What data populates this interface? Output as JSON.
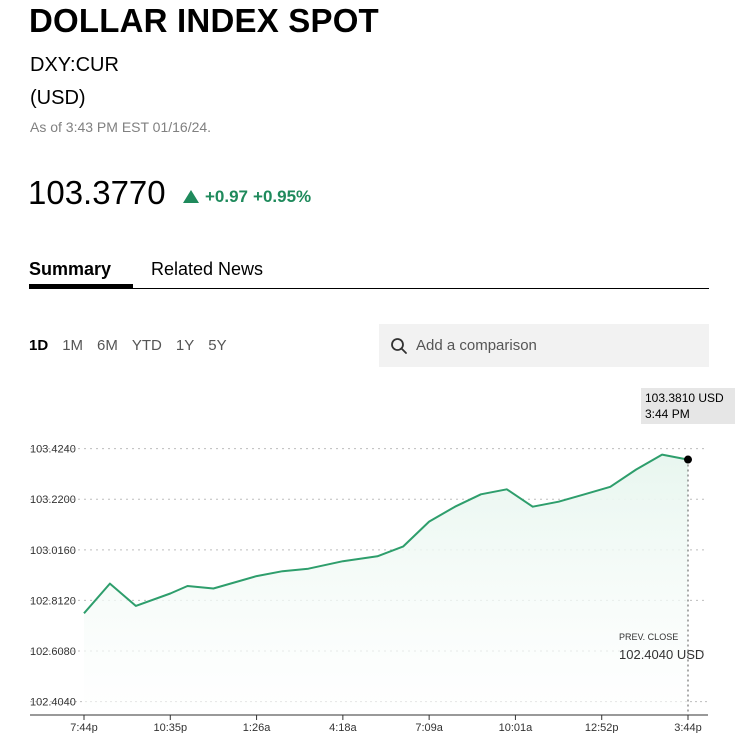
{
  "header": {
    "title": "DOLLAR INDEX SPOT",
    "ticker": "DXY:CUR",
    "currency": "(USD)",
    "as_of": "As of 3:43 PM EST 01/16/24."
  },
  "quote": {
    "price": "103.3770",
    "change": "+0.97",
    "change_pct": "+0.95%",
    "direction_icon": "triangle-up-icon",
    "up_color": "#1f8a5c"
  },
  "tabs": [
    {
      "label": "Summary",
      "active": true
    },
    {
      "label": "Related News",
      "active": false
    }
  ],
  "ranges": [
    {
      "label": "1D",
      "active": true
    },
    {
      "label": "1M",
      "active": false
    },
    {
      "label": "6M",
      "active": false
    },
    {
      "label": "YTD",
      "active": false
    },
    {
      "label": "1Y",
      "active": false
    },
    {
      "label": "5Y",
      "active": false
    }
  ],
  "search": {
    "placeholder": "Add a comparison",
    "icon": "search-icon"
  },
  "chart_data": {
    "type": "area",
    "title": "",
    "xlabel": "",
    "ylabel": "",
    "x_ticks": [
      "7:44p",
      "10:35p",
      "1:26a",
      "4:18a",
      "7:09a",
      "10:01a",
      "12:52p",
      "3:44p"
    ],
    "y_ticks": [
      102.404,
      102.608,
      102.812,
      103.016,
      103.22,
      103.424
    ],
    "y_tick_labels": [
      "102.4040",
      "102.6080",
      "102.8120",
      "103.0160",
      "103.2200",
      "103.4240"
    ],
    "ylim": [
      102.35,
      103.6
    ],
    "grid": true,
    "line_color": "#2e9e6c",
    "fill_color": "#e8f6ef",
    "last_point": {
      "value": "103.3810 USD",
      "time": "3:44 PM"
    },
    "prev_close": {
      "label": "PREV. CLOSE",
      "value": "102.4040 USD",
      "y": 102.404
    },
    "series": [
      {
        "x": [
          0,
          0.3,
          0.6,
          1,
          1.2,
          1.5,
          2,
          2.3,
          2.6,
          3,
          3.4,
          3.7,
          4,
          4.3,
          4.6,
          4.9,
          5.2,
          5.5,
          5.8,
          6.1,
          6.4,
          6.7,
          7
        ],
        "values": [
          102.76,
          102.88,
          102.79,
          102.84,
          102.87,
          102.86,
          102.91,
          102.93,
          102.94,
          102.97,
          102.99,
          103.03,
          103.13,
          103.19,
          103.24,
          103.26,
          103.19,
          103.21,
          103.24,
          103.27,
          103.34,
          103.4,
          103.38
        ]
      }
    ]
  }
}
